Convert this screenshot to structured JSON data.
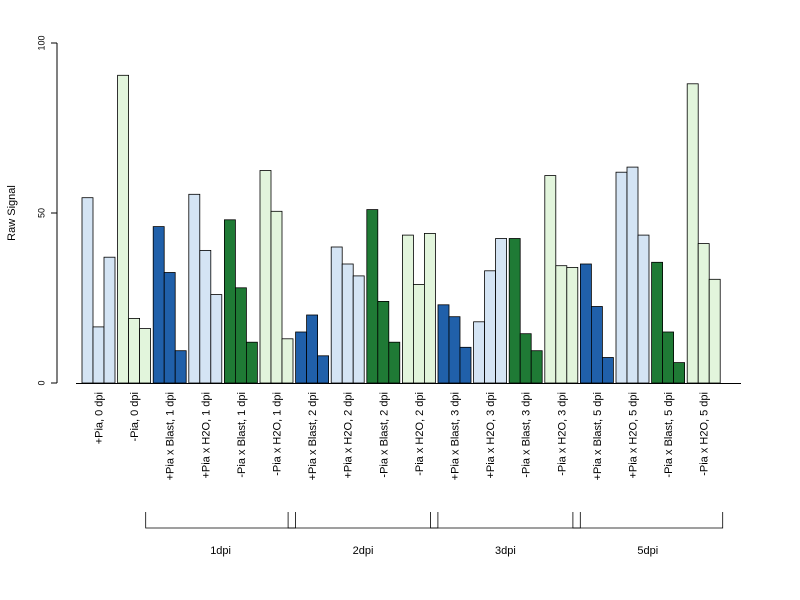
{
  "chart_data": {
    "type": "bar",
    "ylabel": "Raw Signal",
    "ylim": [
      0,
      100
    ],
    "yticks": [
      0,
      50,
      100
    ],
    "grid": false,
    "categories": [
      "+Pia, 0 dpi",
      "-Pia, 0 dpi",
      "+Pia x Blast, 1 dpi",
      "+Pia x H2O, 1 dpi",
      "-Pia x Blast, 1 dpi",
      "-Pia x H2O, 1 dpi",
      "+Pia x Blast, 2 dpi",
      "+Pia x H2O, 2 dpi",
      "-Pia x Blast, 2 dpi",
      "-Pia x H2O, 2 dpi",
      "+Pia x Blast, 3 dpi",
      "+Pia x H2O, 3 dpi",
      "-Pia x Blast, 3 dpi",
      "-Pia x H2O, 3 dpi",
      "+Pia x Blast, 5 dpi",
      "+Pia x H2O, 5 dpi",
      "-Pia x Blast, 5 dpi",
      "-Pia x H2O, 5 dpi"
    ],
    "replicates": [
      [
        54.5,
        16.5,
        37.0
      ],
      [
        90.5,
        19.0,
        16.0
      ],
      [
        46.0,
        32.5,
        9.5
      ],
      [
        55.5,
        39.0,
        26.0
      ],
      [
        48.0,
        28.0,
        12.0
      ],
      [
        62.5,
        50.5,
        13.0
      ],
      [
        15.0,
        20.0,
        8.0
      ],
      [
        40.0,
        35.0,
        31.5
      ],
      [
        51.0,
        24.0,
        12.0
      ],
      [
        43.5,
        29.0,
        44.0
      ],
      [
        23.0,
        19.5,
        10.5
      ],
      [
        18.0,
        33.0,
        42.5
      ],
      [
        42.5,
        14.5,
        9.5
      ],
      [
        61.0,
        34.5,
        34.0
      ],
      [
        35.0,
        22.5,
        7.5
      ],
      [
        62.0,
        63.5,
        43.5
      ],
      [
        35.5,
        15.0,
        6.0
      ],
      [
        88.0,
        41.0,
        30.5
      ]
    ],
    "bar_colors": [
      "#d4e4f4",
      "#e2f5dc",
      "#2060aa",
      "#d4e4f4",
      "#1f7a35",
      "#e2f5dc",
      "#2060aa",
      "#d4e4f4",
      "#1f7a35",
      "#e2f5dc",
      "#2060aa",
      "#d4e4f4",
      "#1f7a35",
      "#e2f5dc",
      "#2060aa",
      "#d4e4f4",
      "#1f7a35",
      "#e2f5dc"
    ],
    "groups": [
      {
        "label": "1dpi",
        "from": 2,
        "to": 5
      },
      {
        "label": "2dpi",
        "from": 6,
        "to": 9
      },
      {
        "label": "3dpi",
        "from": 10,
        "to": 13
      },
      {
        "label": "5dpi",
        "from": 14,
        "to": 17
      }
    ]
  }
}
